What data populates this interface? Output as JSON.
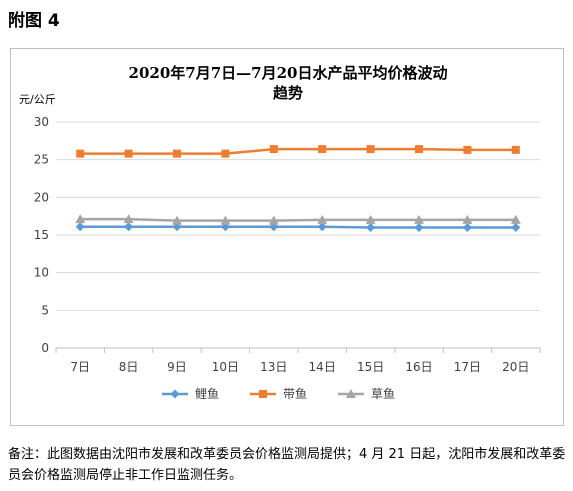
{
  "figure_label": "附图 4",
  "note": "备注：此图数据由沈阳市发展和改革委员会价格监测局提供；4 月 21 日起，沈阳市发展和改革委员会价格监测局停止非工作日监测任务。",
  "chart_data": {
    "type": "line",
    "title_lines": [
      "2020年7月7日—7月20日水产品平均价格波动",
      "趋势"
    ],
    "ylabel": "元/公斤",
    "xlabel": "",
    "categories": [
      "7日",
      "8日",
      "9日",
      "10日",
      "13日",
      "14日",
      "15日",
      "16日",
      "17日",
      "20日"
    ],
    "ylim": [
      0,
      30
    ],
    "yticks": [
      0,
      5,
      10,
      15,
      20,
      25,
      30
    ],
    "grid": true,
    "legend_position": "bottom",
    "series": [
      {
        "name": "鲤鱼",
        "color": "#5b9bd5",
        "marker": "diamond",
        "values": [
          16.1,
          16.1,
          16.1,
          16.1,
          16.1,
          16.1,
          16.0,
          16.0,
          16.0,
          16.0
        ]
      },
      {
        "name": "带鱼",
        "color": "#ed7d31",
        "marker": "square",
        "values": [
          25.8,
          25.8,
          25.8,
          25.8,
          26.4,
          26.4,
          26.4,
          26.4,
          26.3,
          26.3
        ]
      },
      {
        "name": "草鱼",
        "color": "#a5a5a5",
        "marker": "triangle",
        "values": [
          17.1,
          17.1,
          16.9,
          16.9,
          16.9,
          17.0,
          17.0,
          17.0,
          17.0,
          17.0
        ]
      }
    ]
  }
}
